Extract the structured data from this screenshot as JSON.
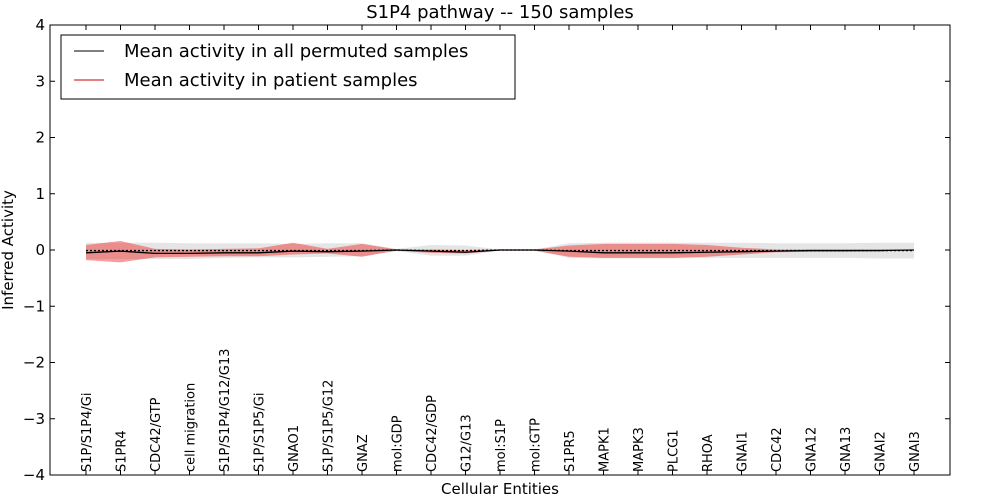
{
  "chart_data": {
    "type": "line",
    "title": "S1P4 pathway -- 150 samples",
    "xlabel": "Cellular Entities",
    "ylabel": "Inferred Activity",
    "ylim": [
      -4,
      4
    ],
    "yticks": [
      -4,
      -3,
      -2,
      -1,
      0,
      1,
      2,
      3,
      4
    ],
    "legend_position": "top-left",
    "categories": [
      "S1P/S1P4/Gi",
      "S1PR4",
      "CDC42/GTP",
      "cell migration",
      "S1P/S1P4/G12/G13",
      "S1P/S1P5/Gi",
      "GNAO1",
      "S1P/S1P5/G12",
      "GNAZ",
      "mol:GDP",
      "CDC42/GDP",
      "G12/G13",
      "mol:S1P",
      "mol:GTP",
      "S1PR5",
      "MAPK1",
      "MAPK3",
      "PLCG1",
      "RHOA",
      "GNAI1",
      "CDC42",
      "GNA12",
      "GNA13",
      "GNAI2",
      "GNAI3"
    ],
    "series": [
      {
        "name": "Mean activity in all permuted samples",
        "color": "#000000",
        "dashed": true,
        "values": [
          -0.01,
          -0.01,
          -0.01,
          -0.01,
          -0.01,
          -0.01,
          -0.01,
          -0.01,
          -0.01,
          0.0,
          -0.01,
          -0.01,
          0.0,
          0.0,
          -0.01,
          -0.01,
          -0.01,
          -0.01,
          -0.01,
          -0.01,
          -0.01,
          -0.01,
          -0.01,
          -0.01,
          -0.01
        ],
        "band_lower": [
          -0.16,
          -0.16,
          -0.16,
          -0.16,
          -0.14,
          -0.13,
          -0.13,
          -0.12,
          -0.11,
          -0.02,
          -0.1,
          -0.1,
          -0.01,
          -0.01,
          -0.14,
          -0.15,
          -0.15,
          -0.15,
          -0.14,
          -0.14,
          -0.14,
          -0.14,
          -0.14,
          -0.15,
          -0.15
        ],
        "band_upper": [
          0.13,
          0.13,
          0.13,
          0.12,
          0.12,
          0.12,
          0.11,
          0.12,
          0.12,
          0.02,
          0.09,
          0.08,
          0.01,
          0.01,
          0.12,
          0.13,
          0.13,
          0.13,
          0.13,
          0.13,
          0.12,
          0.12,
          0.12,
          0.13,
          0.13
        ],
        "band_color": "#aaaaaa"
      },
      {
        "name": "Mean activity in patient samples",
        "color": "#000000",
        "legend_color": "#cc0000",
        "dashed": false,
        "values": [
          -0.05,
          -0.02,
          -0.06,
          -0.06,
          -0.05,
          -0.05,
          -0.02,
          -0.03,
          -0.02,
          0.0,
          -0.02,
          -0.04,
          0.0,
          0.0,
          -0.02,
          -0.05,
          -0.05,
          -0.05,
          -0.04,
          -0.03,
          -0.02,
          -0.01,
          -0.01,
          -0.01,
          0.0
        ],
        "band_lower": [
          -0.18,
          -0.22,
          -0.13,
          -0.12,
          -0.11,
          -0.11,
          -0.08,
          -0.06,
          -0.12,
          -0.01,
          -0.05,
          -0.06,
          -0.01,
          -0.01,
          -0.12,
          -0.14,
          -0.14,
          -0.14,
          -0.12,
          -0.08,
          -0.04,
          -0.03,
          -0.03,
          -0.02,
          -0.01
        ],
        "band_upper": [
          0.09,
          0.16,
          0.02,
          0.01,
          0.02,
          0.03,
          0.13,
          0.02,
          0.11,
          0.01,
          0.01,
          0.0,
          0.01,
          0.01,
          0.08,
          0.11,
          0.11,
          0.11,
          0.09,
          0.04,
          0.01,
          0.01,
          0.01,
          0.01,
          0.01
        ],
        "band_color": "#ee2222"
      }
    ]
  }
}
